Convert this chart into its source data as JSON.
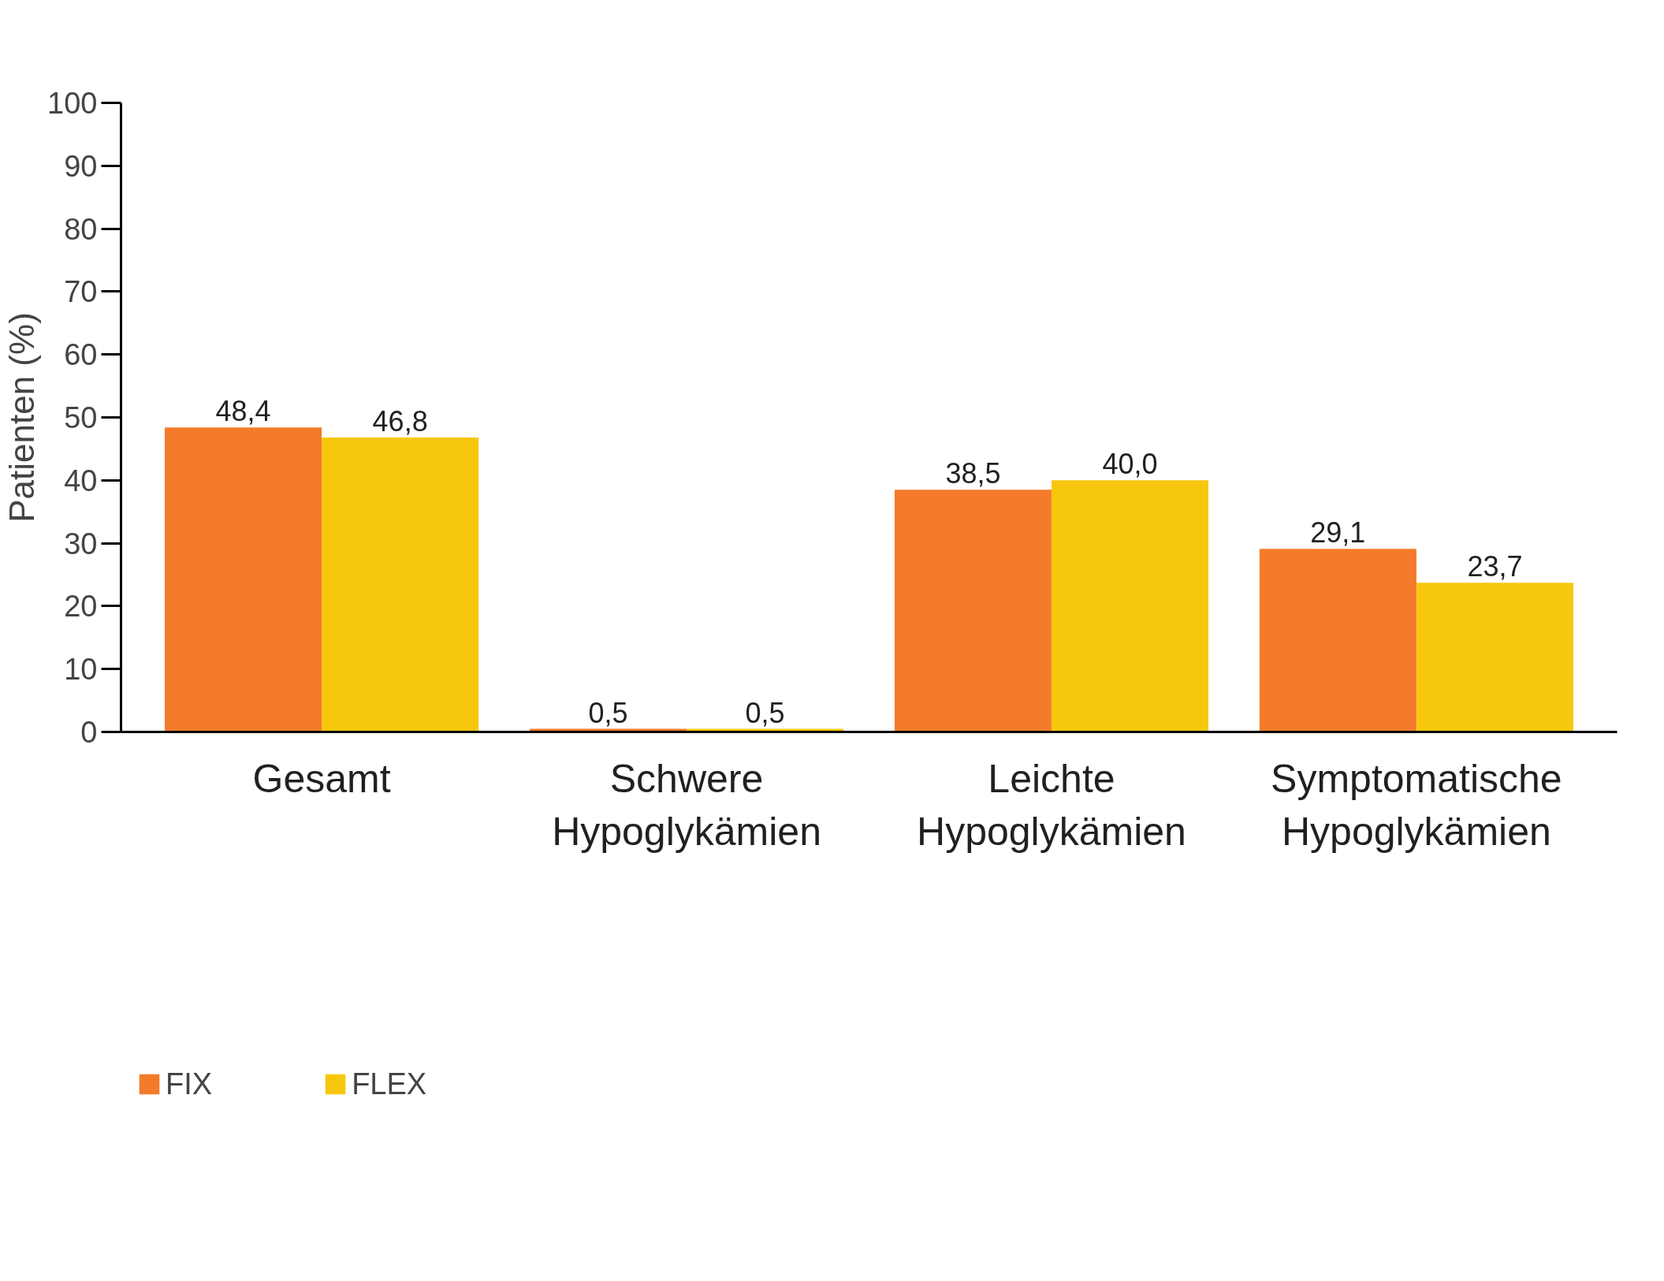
{
  "chart_data": {
    "type": "bar",
    "ylabel": "Patienten (%)",
    "categories": [
      "Gesamt",
      "Schwere Hypoglykämien",
      "Leichte Hypoglykämien",
      "Symptomatische Hypoglykämien"
    ],
    "series": [
      {
        "name": "FIX",
        "color": "#f47b2a",
        "values": [
          48.4,
          0.5,
          38.5,
          29.1
        ],
        "value_labels": [
          "48,4",
          "0,5",
          "38,5",
          "29,1"
        ]
      },
      {
        "name": "FLEX",
        "color": "#f7c70e",
        "values": [
          46.8,
          0.5,
          40.0,
          23.7
        ],
        "value_labels": [
          "46,8",
          "0,5",
          "40,0",
          "23,7"
        ]
      }
    ],
    "ylim": [
      0,
      100
    ],
    "yticks": [
      0,
      10,
      20,
      30,
      40,
      50,
      60,
      70,
      80,
      90,
      100
    ],
    "grid": false,
    "legend": "bottom left"
  }
}
